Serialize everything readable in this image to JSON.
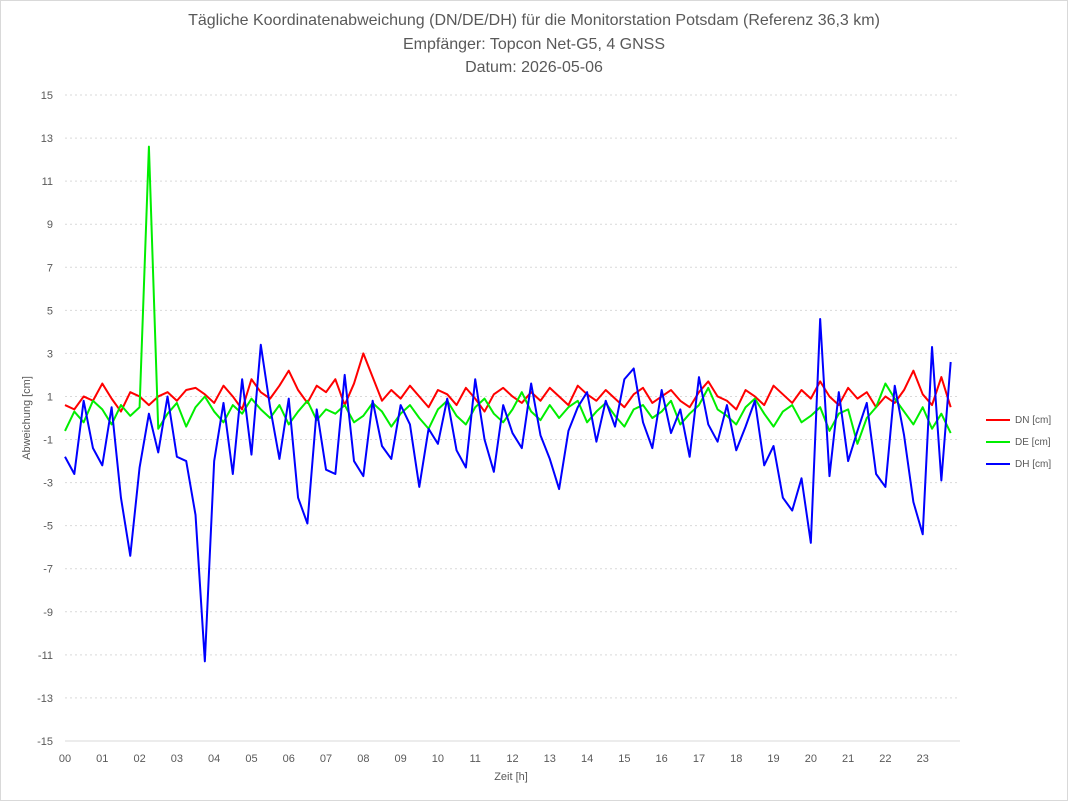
{
  "chart": {
    "title_line1": "Tägliche Koordinatenabweichung (DN/DE/DH) für die Monitorstation Potsdam (Referenz 36,3 km)",
    "title_line2": "Empfänger: Topcon Net-G5, 4 GNSS",
    "title_line3": "Datum: 2026-05-06"
  },
  "chart_data": {
    "type": "line",
    "title": "Tägliche Koordinatenabweichung (DN/DE/DH) für die Monitorstation Potsdam (Referenz 36,3 km)",
    "subtitle": "Empfänger: Topcon Net-G5, 4 GNSS | Datum: 2026-05-06",
    "xlabel": "Zeit [h]",
    "ylabel": "Abweichung [cm]",
    "xlim": [
      0,
      23.75
    ],
    "ylim": [
      -15,
      15
    ],
    "x_tick_labels": [
      "00",
      "01",
      "02",
      "03",
      "04",
      "05",
      "06",
      "07",
      "08",
      "09",
      "10",
      "11",
      "12",
      "13",
      "14",
      "15",
      "16",
      "17",
      "18",
      "19",
      "20",
      "21",
      "22",
      "23"
    ],
    "y_ticks": [
      15,
      13,
      11,
      9,
      7,
      5,
      3,
      1,
      -1,
      -3,
      -5,
      -7,
      -9,
      -11,
      -13,
      -15
    ],
    "grid": "horizontal dotted",
    "legend": "right",
    "sampling": "regular, x = 0, 0.25, 0.5 ... 23.75 h (96 points per series, approximate readings)",
    "series": [
      {
        "name": "DN [cm]",
        "color": "#ff0000",
        "values": [
          0.6,
          0.4,
          1.0,
          0.8,
          1.6,
          0.9,
          0.3,
          1.2,
          1.0,
          0.6,
          1.0,
          1.2,
          0.8,
          1.3,
          1.4,
          1.1,
          0.7,
          1.5,
          1.0,
          0.4,
          1.8,
          1.2,
          0.9,
          1.5,
          2.2,
          1.3,
          0.7,
          1.5,
          1.2,
          1.8,
          0.6,
          1.6,
          3.0,
          1.9,
          0.8,
          1.3,
          0.9,
          1.5,
          1.0,
          0.5,
          1.3,
          1.1,
          0.6,
          1.4,
          0.9,
          0.3,
          1.1,
          1.4,
          1.0,
          0.7,
          1.2,
          0.8,
          1.4,
          1.0,
          0.6,
          1.5,
          1.1,
          0.8,
          1.3,
          0.9,
          0.5,
          1.1,
          1.4,
          0.7,
          1.0,
          1.3,
          0.8,
          0.5,
          1.2,
          1.7,
          1.0,
          0.8,
          0.4,
          1.3,
          1.0,
          0.6,
          1.5,
          1.1,
          0.7,
          1.3,
          0.9,
          1.7,
          1.0,
          0.6,
          1.4,
          0.9,
          1.2,
          0.5,
          1.0,
          0.7,
          1.3,
          2.2,
          1.1,
          0.6,
          1.9,
          0.5
        ]
      },
      {
        "name": "DE [cm]",
        "color": "#00ee00",
        "values": [
          -0.6,
          0.3,
          -0.2,
          0.8,
          0.4,
          -0.3,
          0.6,
          0.1,
          0.5,
          12.6,
          -0.5,
          0.2,
          0.7,
          -0.4,
          0.5,
          1.0,
          0.3,
          -0.2,
          0.6,
          0.2,
          0.9,
          0.4,
          0.0,
          0.6,
          -0.3,
          0.3,
          0.8,
          -0.1,
          0.4,
          0.2,
          0.6,
          -0.2,
          0.1,
          0.7,
          0.3,
          -0.4,
          0.2,
          0.6,
          0.0,
          -0.5,
          0.4,
          0.8,
          0.1,
          -0.3,
          0.5,
          0.9,
          0.2,
          -0.2,
          0.4,
          1.2,
          0.3,
          -0.1,
          0.6,
          0.0,
          0.5,
          0.8,
          -0.2,
          0.3,
          0.7,
          0.1,
          -0.4,
          0.4,
          0.6,
          0.0,
          0.3,
          0.8,
          -0.3,
          0.2,
          0.6,
          1.4,
          0.4,
          0.1,
          -0.3,
          0.5,
          0.9,
          0.2,
          -0.4,
          0.3,
          0.6,
          -0.2,
          0.1,
          0.5,
          -0.6,
          0.2,
          0.4,
          -1.2,
          0.0,
          0.5,
          1.6,
          0.9,
          0.3,
          -0.3,
          0.5,
          -0.5,
          0.2,
          -0.7
        ]
      },
      {
        "name": "DH [cm]",
        "color": "#0000ff",
        "values": [
          -1.8,
          -2.6,
          0.8,
          -1.4,
          -2.2,
          0.5,
          -3.7,
          -6.4,
          -2.3,
          0.2,
          -1.6,
          1.0,
          -1.8,
          -2.0,
          -4.5,
          -11.3,
          -2.0,
          0.7,
          -2.6,
          1.8,
          -1.7,
          3.4,
          0.5,
          -1.9,
          0.9,
          -3.7,
          -4.9,
          0.4,
          -2.4,
          -2.6,
          2.0,
          -2.0,
          -2.7,
          0.8,
          -1.3,
          -1.9,
          0.6,
          -0.3,
          -3.2,
          -0.5,
          -1.2,
          0.9,
          -1.5,
          -2.3,
          1.8,
          -1.0,
          -2.5,
          0.6,
          -0.7,
          -1.4,
          1.6,
          -0.8,
          -1.9,
          -3.3,
          -0.6,
          0.5,
          1.2,
          -1.1,
          0.8,
          -0.4,
          1.8,
          2.3,
          -0.2,
          -1.4,
          1.3,
          -0.7,
          0.4,
          -1.8,
          1.9,
          -0.3,
          -1.1,
          0.6,
          -1.5,
          -0.4,
          0.8,
          -2.2,
          -1.3,
          -3.7,
          -4.3,
          -2.8,
          -5.8,
          4.6,
          -2.7,
          1.2,
          -2.0,
          -0.6,
          0.7,
          -2.6,
          -3.2,
          1.5,
          -0.8,
          -3.9,
          -5.4,
          3.3,
          -2.9,
          2.6
        ]
      }
    ]
  }
}
